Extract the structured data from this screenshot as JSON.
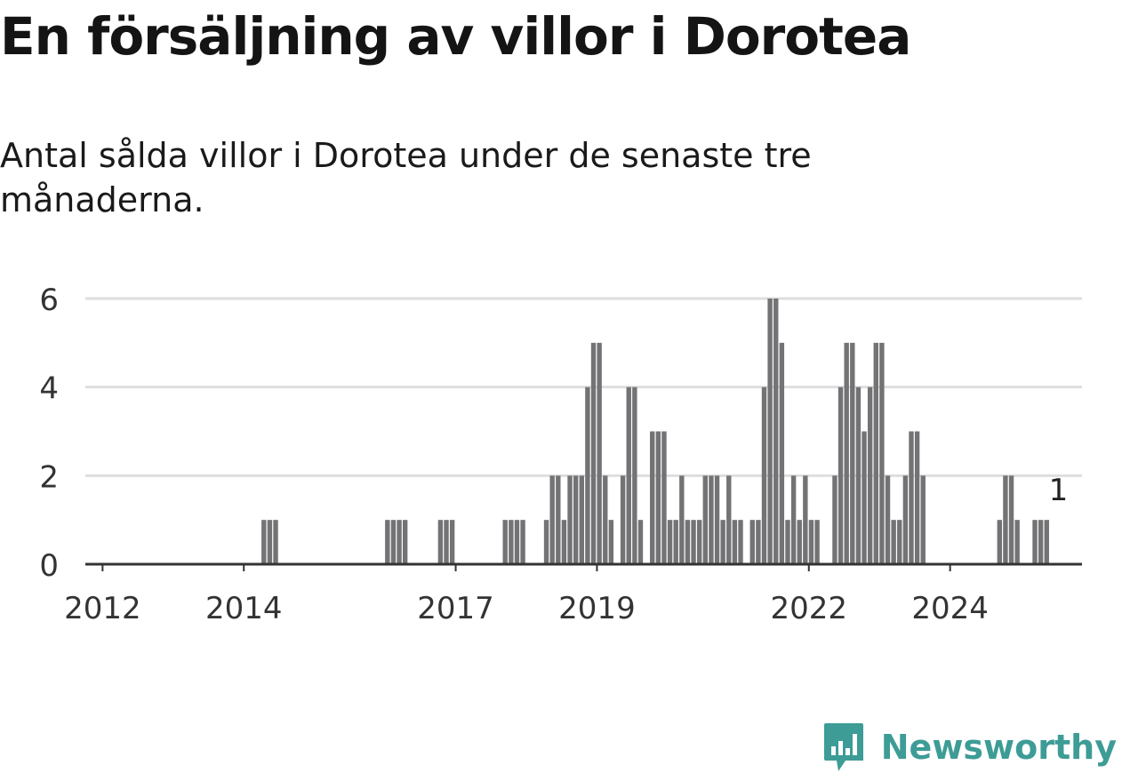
{
  "header": {
    "title": "En försäljning av villor i Dorotea",
    "subtitle": "Antal sålda villor i Dorotea under de senaste tre månaderna."
  },
  "brand": {
    "name": "Newsworthy",
    "logo_icon": "newsworthy-logo-icon",
    "color": "#3d9c96"
  },
  "chart_data": {
    "type": "bar",
    "title": "En försäljning av villor i Dorotea",
    "subtitle": "Antal sålda villor i Dorotea under de senaste tre månaderna.",
    "xlabel": "",
    "ylabel": "",
    "x_start": "2011-10",
    "interval": "month",
    "ylim": [
      0,
      6
    ],
    "yticks": [
      0,
      2,
      4,
      6
    ],
    "xticks": [
      {
        "label": "2012",
        "x": "2012-01"
      },
      {
        "label": "2014",
        "x": "2014-01"
      },
      {
        "label": "2017",
        "x": "2017-01"
      },
      {
        "label": "2019",
        "x": "2019-01"
      },
      {
        "label": "2022",
        "x": "2022-01"
      },
      {
        "label": "2024",
        "x": "2024-01"
      }
    ],
    "values": [
      0,
      0,
      0,
      0,
      0,
      0,
      0,
      0,
      0,
      0,
      0,
      0,
      0,
      0,
      0,
      0,
      0,
      0,
      0,
      0,
      0,
      0,
      0,
      0,
      0,
      0,
      0,
      0,
      0,
      0,
      1,
      1,
      1,
      0,
      0,
      0,
      0,
      0,
      0,
      0,
      0,
      0,
      0,
      0,
      0,
      0,
      0,
      0,
      0,
      0,
      0,
      1,
      1,
      1,
      1,
      0,
      0,
      0,
      0,
      0,
      1,
      1,
      1,
      0,
      0,
      0,
      0,
      0,
      0,
      0,
      0,
      1,
      1,
      1,
      1,
      0,
      0,
      0,
      1,
      2,
      2,
      1,
      2,
      2,
      2,
      4,
      5,
      5,
      2,
      1,
      0,
      2,
      4,
      4,
      1,
      0,
      3,
      3,
      3,
      1,
      1,
      2,
      1,
      1,
      1,
      2,
      2,
      2,
      1,
      2,
      1,
      1,
      0,
      1,
      1,
      4,
      6,
      6,
      5,
      1,
      2,
      1,
      2,
      1,
      1,
      0,
      0,
      2,
      4,
      5,
      5,
      4,
      3,
      4,
      5,
      5,
      2,
      1,
      1,
      2,
      3,
      3,
      2,
      0,
      0,
      0,
      0,
      0,
      0,
      0,
      0,
      0,
      0,
      0,
      0,
      1,
      2,
      2,
      1,
      0,
      0,
      1,
      1,
      1
    ],
    "highlight": {
      "index": 165,
      "value": 1,
      "label": "1",
      "color": "#1aa39b"
    },
    "bar_color": "#737275",
    "grid": true,
    "gridline_color": "#dedede",
    "axis_color": "#333333"
  }
}
